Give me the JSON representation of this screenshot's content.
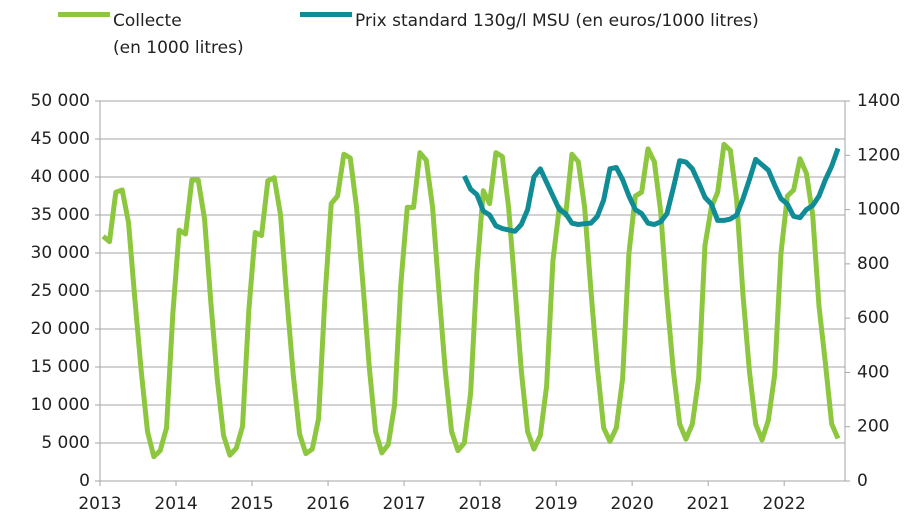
{
  "chart_data": {
    "type": "line",
    "x": [
      2013.042,
      2013.125,
      2013.208,
      2013.292,
      2013.375,
      2013.458,
      2013.542,
      2013.625,
      2013.708,
      2013.792,
      2013.875,
      2013.958,
      2014.042,
      2014.125,
      2014.208,
      2014.292,
      2014.375,
      2014.458,
      2014.542,
      2014.625,
      2014.708,
      2014.792,
      2014.875,
      2014.958,
      2015.042,
      2015.125,
      2015.208,
      2015.292,
      2015.375,
      2015.458,
      2015.542,
      2015.625,
      2015.708,
      2015.792,
      2015.875,
      2015.958,
      2016.042,
      2016.125,
      2016.208,
      2016.292,
      2016.375,
      2016.458,
      2016.542,
      2016.625,
      2016.708,
      2016.792,
      2016.875,
      2016.958,
      2017.042,
      2017.125,
      2017.208,
      2017.292,
      2017.375,
      2017.458,
      2017.542,
      2017.625,
      2017.708,
      2017.792,
      2017.875,
      2017.958,
      2018.042,
      2018.125,
      2018.208,
      2018.292,
      2018.375,
      2018.458,
      2018.542,
      2018.625,
      2018.708,
      2018.792,
      2018.875,
      2018.958,
      2019.042,
      2019.125,
      2019.208,
      2019.292,
      2019.375,
      2019.458,
      2019.542,
      2019.625,
      2019.708,
      2019.792,
      2019.875,
      2019.958,
      2020.042,
      2020.125,
      2020.208,
      2020.292,
      2020.375,
      2020.458,
      2020.542,
      2020.625,
      2020.708,
      2020.792,
      2020.875,
      2020.958,
      2021.042,
      2021.125,
      2021.208,
      2021.292,
      2021.375,
      2021.458,
      2021.542,
      2021.625,
      2021.708,
      2021.792,
      2021.875,
      2021.958,
      2022.042,
      2022.125,
      2022.208,
      2022.292,
      2022.375,
      2022.458,
      2022.542,
      2022.625,
      2022.708
    ],
    "series": [
      {
        "name": "Collecte\n(en 1000 litres)",
        "color": "#8dc63f",
        "values": [
          32200,
          31500,
          38000,
          38300,
          34000,
          24000,
          14500,
          6500,
          3200,
          4000,
          7000,
          22000,
          33000,
          32500,
          39600,
          39600,
          34500,
          23500,
          13500,
          6000,
          3400,
          4300,
          7200,
          22500,
          32700,
          32300,
          39500,
          39900,
          35000,
          24000,
          14000,
          6200,
          3600,
          4200,
          8200,
          24000,
          36500,
          37500,
          43000,
          42500,
          36000,
          26000,
          15000,
          6500,
          3700,
          4800,
          10000,
          26000,
          36000,
          36000,
          43200,
          42200,
          36000,
          25000,
          14500,
          6500,
          4000,
          5000,
          11500,
          27500,
          38200,
          36500,
          43200,
          42700,
          36000,
          25500,
          14500,
          6500,
          4200,
          6000,
          12500,
          29000,
          36000,
          35000,
          43000,
          42000,
          36000,
          25000,
          15000,
          7000,
          5200,
          7000,
          13500,
          30000,
          37500,
          38000,
          43700,
          42000,
          35500,
          24000,
          14500,
          7500,
          5500,
          7500,
          13500,
          31000,
          36000,
          38000,
          44300,
          43500,
          37000,
          24500,
          14500,
          7500,
          5400,
          8000,
          14000,
          30000,
          37500,
          38300,
          42400,
          40500,
          35000,
          23000,
          15500,
          7500,
          5600
        ]
      },
      {
        "name": "Prix standard 130g/l MSU (en euros/1000 litres)",
        "color": "#0f8c96",
        "axis": "y2",
        "values": [
          null,
          null,
          null,
          null,
          null,
          null,
          null,
          null,
          null,
          null,
          null,
          null,
          null,
          null,
          null,
          null,
          null,
          null,
          null,
          null,
          null,
          null,
          null,
          null,
          null,
          null,
          null,
          null,
          null,
          null,
          null,
          null,
          null,
          null,
          null,
          null,
          null,
          null,
          null,
          null,
          null,
          null,
          null,
          null,
          null,
          null,
          null,
          null,
          null,
          null,
          null,
          null,
          null,
          null,
          null,
          null,
          null,
          1124,
          1075,
          1055,
          995,
          980,
          940,
          930,
          925,
          920,
          945,
          1000,
          1120,
          1150,
          1100,
          1050,
          1000,
          985,
          950,
          945,
          948,
          950,
          975,
          1035,
          1150,
          1155,
          1110,
          1050,
          1000,
          985,
          950,
          945,
          955,
          985,
          1080,
          1180,
          1175,
          1150,
          1100,
          1045,
          1020,
          960,
          960,
          965,
          980,
          1040,
          1110,
          1185,
          1165,
          1145,
          1090,
          1040,
          1020,
          975,
          970,
          1000,
          1015,
          1050,
          1110,
          1160,
          1225
        ]
      }
    ],
    "xlim": [
      2013,
      2022.8
    ],
    "xticks": [
      2013,
      2014,
      2015,
      2016,
      2017,
      2018,
      2019,
      2020,
      2021,
      2022
    ],
    "ylim": [
      0,
      50000
    ],
    "yticks": [
      0,
      {
        "value": 5000,
        "label": "5 000"
      },
      {
        "value": 10000,
        "label": "10 000"
      },
      {
        "value": 15000,
        "label": "15 000"
      },
      {
        "value": 20000,
        "label": "20 000"
      },
      {
        "value": 25000,
        "label": "25 000"
      },
      {
        "value": 30000,
        "label": "30 000"
      },
      {
        "value": 35000,
        "label": "35 000"
      },
      {
        "value": 40000,
        "label": "40 000"
      },
      {
        "value": 45000,
        "label": "45 000"
      },
      {
        "value": 50000,
        "label": "50 000"
      }
    ],
    "y2lim": [
      0,
      1400
    ],
    "y2ticks": [
      0,
      200,
      400,
      600,
      800,
      1000,
      1200,
      1400
    ],
    "grid": true,
    "legend": "top"
  }
}
